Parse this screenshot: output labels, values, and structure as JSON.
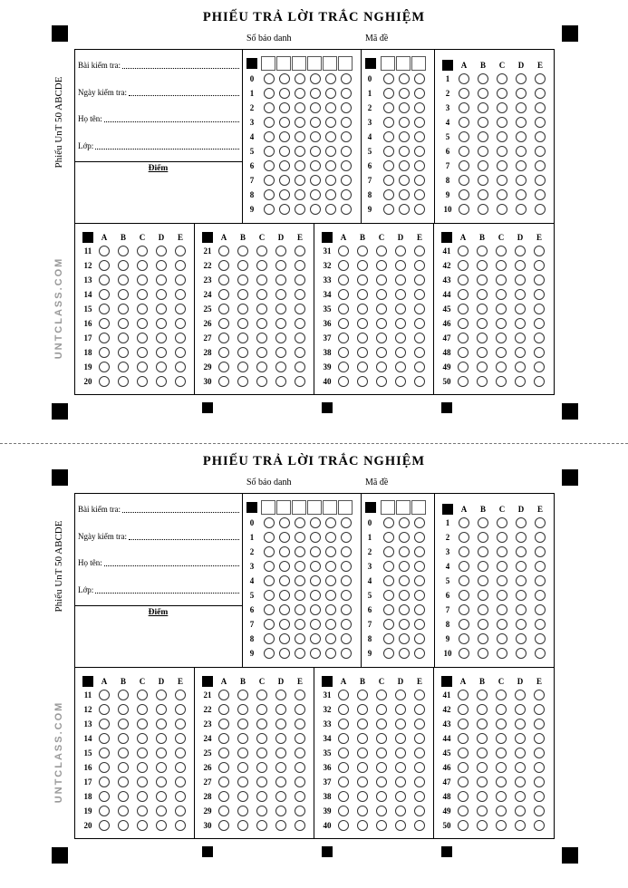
{
  "sheet": {
    "title": "PHIẾU TRẢ LỜI TRẮC NGHIỆM",
    "sbd_label": "Số báo danh",
    "made_label": "Mã đề",
    "fields": [
      "Bài kiểm tra:",
      "Ngày kiểm tra:",
      "Họ tên:",
      "Lớp:"
    ],
    "score_label": "Điểm",
    "side_label": "Phiếu UnT 50 ABCDE",
    "watermark": "UNTCLASS.COM",
    "digits": [
      "0",
      "1",
      "2",
      "3",
      "4",
      "5",
      "6",
      "7",
      "8",
      "9"
    ],
    "sbd_columns": 6,
    "made_columns": 3,
    "choices": [
      "A",
      "B",
      "C",
      "D",
      "E"
    ],
    "question_blocks": [
      {
        "start": 1,
        "end": 10
      },
      {
        "start": 11,
        "end": 20
      },
      {
        "start": 21,
        "end": 30
      },
      {
        "start": 31,
        "end": 40
      },
      {
        "start": 41,
        "end": 50
      }
    ]
  },
  "sheet_count": 2
}
